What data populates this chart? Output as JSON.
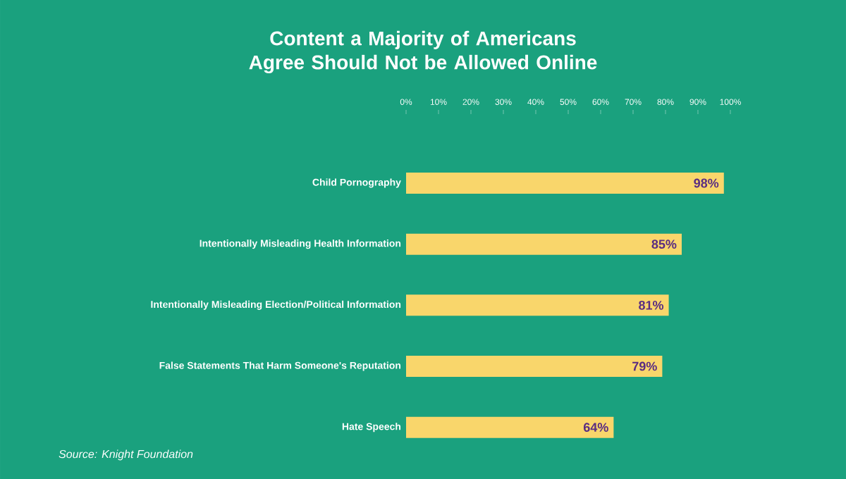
{
  "chart_data": {
    "type": "bar",
    "orientation": "horizontal",
    "title": "Content a Majority of Americans Agree Should Not be Allowed Online",
    "categories": [
      "Child Pornography",
      "Intentionally Misleading Health Information",
      "Intentionally Misleading Election/Political Information",
      "False Statements That Harm Someone's Reputation",
      "Hate Speech"
    ],
    "values": [
      98,
      85,
      81,
      79,
      64
    ],
    "value_labels": [
      "98%",
      "85%",
      "81%",
      "79%",
      "64%"
    ],
    "color": "#f9d66b",
    "xlim": [
      0,
      100
    ],
    "xticks": [
      {
        "value": 0,
        "label": "0%"
      },
      {
        "value": 10,
        "label": "10%"
      },
      {
        "value": 20,
        "label": "20%"
      },
      {
        "value": 30,
        "label": "30%"
      },
      {
        "value": 40,
        "label": "40%"
      },
      {
        "value": 50,
        "label": "50%"
      },
      {
        "value": 60,
        "label": "60%"
      },
      {
        "value": 70,
        "label": "70%"
      },
      {
        "value": 80,
        "label": "80%"
      },
      {
        "value": 90,
        "label": "90%"
      },
      {
        "value": 100,
        "label": "100%"
      }
    ],
    "annotations": [
      "*Source: Knight Foundation*"
    ]
  }
}
